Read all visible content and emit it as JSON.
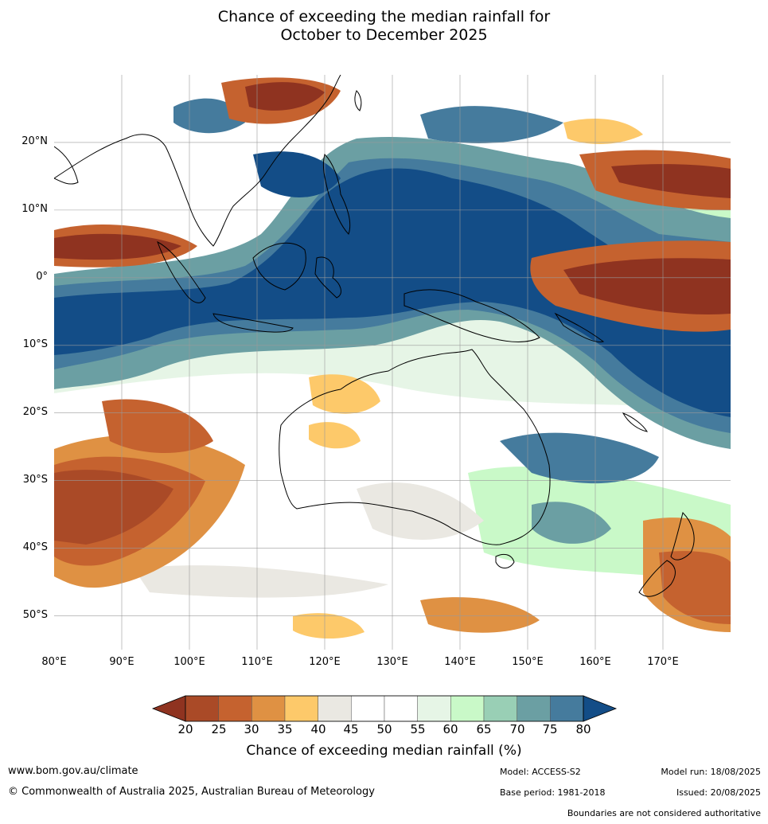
{
  "title": {
    "line1": "Chance of exceeding the median rainfall for",
    "line2": "October to December 2025"
  },
  "map": {
    "lat_labels": [
      "20°N",
      "10°N",
      "0°",
      "10°S",
      "20°S",
      "30°S",
      "40°S",
      "50°S"
    ],
    "lon_labels": [
      "80°E",
      "90°E",
      "100°E",
      "110°E",
      "120°E",
      "130°E",
      "140°E",
      "150°E",
      "160°E",
      "170°E"
    ],
    "extent": {
      "lon_min": 80,
      "lon_max": 180,
      "lat_min": -55,
      "lat_max": 30
    }
  },
  "colorbar": {
    "ticks": [
      "20",
      "25",
      "30",
      "35",
      "40",
      "45",
      "50",
      "55",
      "60",
      "65",
      "70",
      "75",
      "80"
    ],
    "colors": {
      "below_20": "#8f3320",
      "20_25": "#aa4a27",
      "25_30": "#c5622f",
      "30_35": "#df9143",
      "35_40": "#fdc96a",
      "40_45": "#eae8e2",
      "45_50": "#ffffff",
      "50_55": "#ffffff",
      "55_60": "#e6f5e6",
      "60_65": "#c9f9c8",
      "65_70": "#99cfb5",
      "70_75": "#6b9fa3",
      "75_80": "#457b9d",
      "above_80": "#134d87"
    },
    "title": "Chance of exceeding median rainfall (%)"
  },
  "footer": {
    "website": "www.bom.gov.au/climate",
    "copyright": "© Commonwealth of Australia 2025, Australian Bureau of Meteorology",
    "model": "Model: ACCESS-S2",
    "base_period": "Base period: 1981-2018",
    "model_run": "Model run: 18/08/2025",
    "issued": "Issued: 20/08/2025",
    "disclaimer": "Boundaries are not considered authoritative"
  }
}
